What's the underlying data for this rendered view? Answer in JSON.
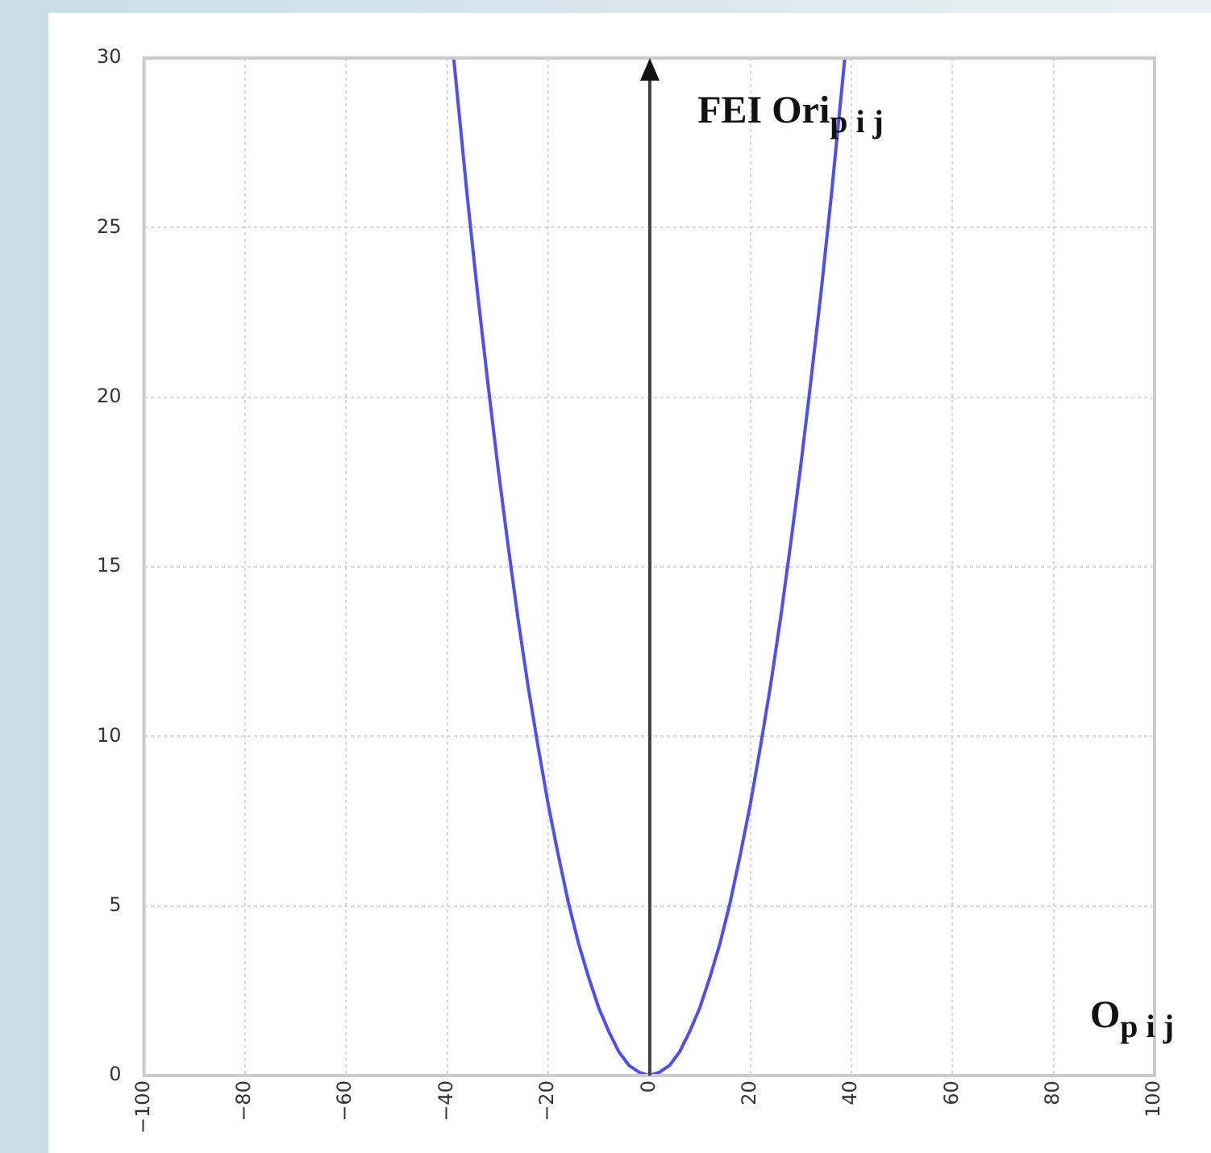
{
  "chart_data": {
    "type": "line",
    "xlabel": "O$_{p i j}$",
    "ylabel": "FEI Ori$_{p i j}$",
    "series": [
      {
        "color": "#4d4dff",
        "x": [
          -38.7,
          -36,
          -34,
          -32,
          -30,
          -28,
          -26,
          -24,
          -22,
          -20,
          -18,
          -16,
          -14,
          -12,
          -10,
          -8,
          -6,
          -4,
          -2,
          0,
          2,
          4,
          6,
          8,
          10,
          12,
          14,
          16,
          18,
          20,
          22,
          24,
          26,
          28,
          30,
          32,
          34,
          36,
          38.7
        ],
        "values": [
          30,
          25.9,
          23.1,
          20.5,
          18,
          15.7,
          13.5,
          11.5,
          9.7,
          8,
          6.5,
          5.1,
          3.9,
          2.9,
          2,
          1.3,
          0.7,
          0.3,
          0.1,
          0,
          0.1,
          0.3,
          0.7,
          1.3,
          2,
          2.9,
          3.9,
          5.1,
          6.5,
          8,
          9.7,
          11.5,
          13.5,
          15.7,
          18,
          20.5,
          23.1,
          25.9,
          30
        ]
      }
    ],
    "xlim": [
      -100,
      100
    ],
    "xticks": [
      -100,
      -80,
      -60,
      -40,
      -20,
      0,
      20,
      40,
      60,
      80,
      100
    ],
    "ylim": [
      0,
      30
    ],
    "yticks": [
      0,
      5,
      10,
      15,
      20,
      25,
      30
    ],
    "grid": true,
    "marker": "none",
    "line_style": "solid",
    "legend": false
  }
}
